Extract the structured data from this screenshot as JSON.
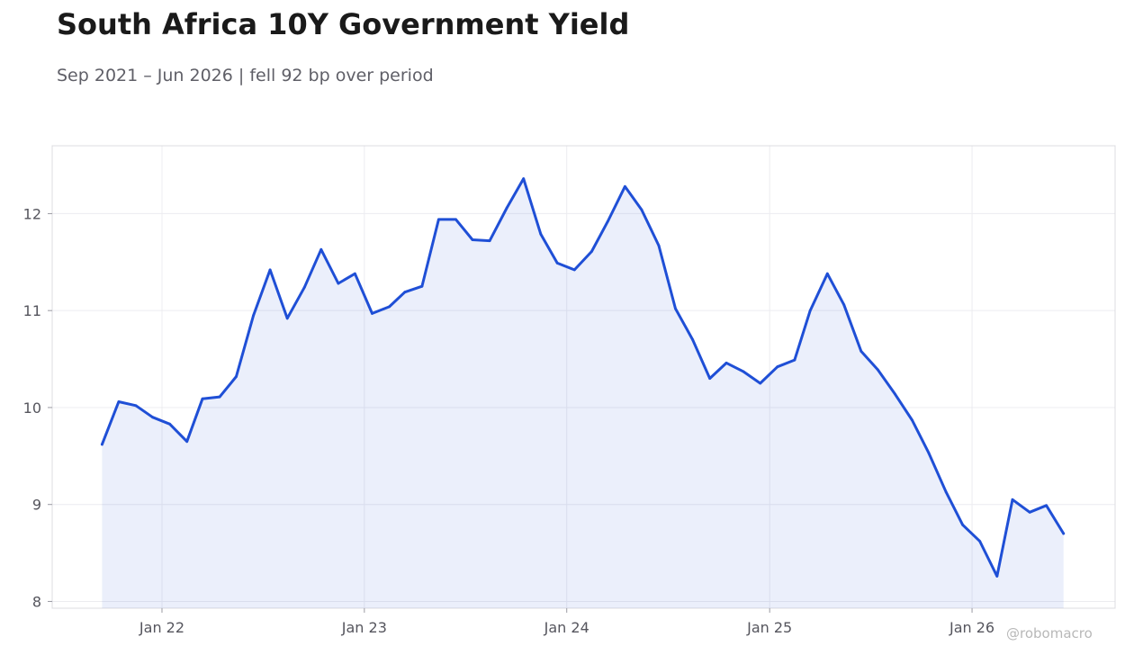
{
  "header": {
    "title": "South Africa 10Y Government Yield",
    "subtitle": "Sep 2021 – Jun 2026 | fell 92 bp over period"
  },
  "watermark": "@robomacro",
  "colors": {
    "line": "#1f4fd6",
    "fill": "#1f4fd6",
    "grid": "#ececf0",
    "frame": "#dcdce0",
    "text": "#55555d"
  },
  "chart_data": {
    "type": "area",
    "title": "South Africa 10Y Government Yield",
    "subtitle": "Sep 2021 – Jun 2026 | fell 92 bp over period",
    "xlabel": "",
    "ylabel": "",
    "x_ticks": [
      {
        "label": "Jan 22",
        "date": "2022-01"
      },
      {
        "label": "Jan 23",
        "date": "2023-01"
      },
      {
        "label": "Jan 24",
        "date": "2024-01"
      },
      {
        "label": "Jan 25",
        "date": "2025-01"
      },
      {
        "label": "Jan 26",
        "date": "2026-01"
      }
    ],
    "y_ticks": [
      8,
      9,
      10,
      11,
      12
    ],
    "ylim": [
      7.93,
      12.7
    ],
    "xlim": [
      "2021-06-17",
      "2026-09-16"
    ],
    "grid": true,
    "legend": "none",
    "series": [
      {
        "x": [
          "2021-09",
          "2021-10",
          "2021-11",
          "2021-12",
          "2022-01",
          "2022-02",
          "2022-03",
          "2022-04",
          "2022-05",
          "2022-06",
          "2022-07",
          "2022-08",
          "2022-09",
          "2022-10",
          "2022-11",
          "2022-12",
          "2023-01",
          "2023-02",
          "2023-03",
          "2023-04",
          "2023-05",
          "2023-06",
          "2023-07",
          "2023-08",
          "2023-09",
          "2023-10",
          "2023-11",
          "2023-12",
          "2024-01",
          "2024-02",
          "2024-03",
          "2024-04",
          "2024-05",
          "2024-06",
          "2024-07",
          "2024-08",
          "2024-09",
          "2024-10",
          "2024-11",
          "2024-12",
          "2025-01",
          "2025-02",
          "2025-03",
          "2025-04",
          "2025-05",
          "2025-06",
          "2025-07",
          "2025-08",
          "2025-09",
          "2025-10",
          "2025-11",
          "2025-12",
          "2026-01",
          "2026-02",
          "2026-03",
          "2026-04",
          "2026-05",
          "2026-06"
        ],
        "values": [
          9.62,
          10.06,
          10.02,
          9.9,
          9.83,
          9.65,
          10.09,
          10.11,
          10.32,
          10.95,
          11.42,
          10.92,
          11.24,
          11.63,
          11.28,
          11.38,
          10.97,
          11.04,
          11.19,
          11.25,
          11.94,
          11.94,
          11.73,
          11.72,
          12.06,
          12.36,
          11.79,
          11.49,
          11.42,
          11.61,
          11.92,
          12.28,
          12.04,
          11.67,
          11.02,
          10.7,
          10.3,
          10.46,
          10.37,
          10.25,
          10.42,
          10.49,
          11.0,
          11.38,
          11.06,
          10.58,
          10.39,
          10.14,
          9.87,
          9.53,
          9.13,
          8.79,
          8.62,
          8.26,
          9.05,
          8.92,
          8.99,
          8.7
        ]
      }
    ]
  }
}
